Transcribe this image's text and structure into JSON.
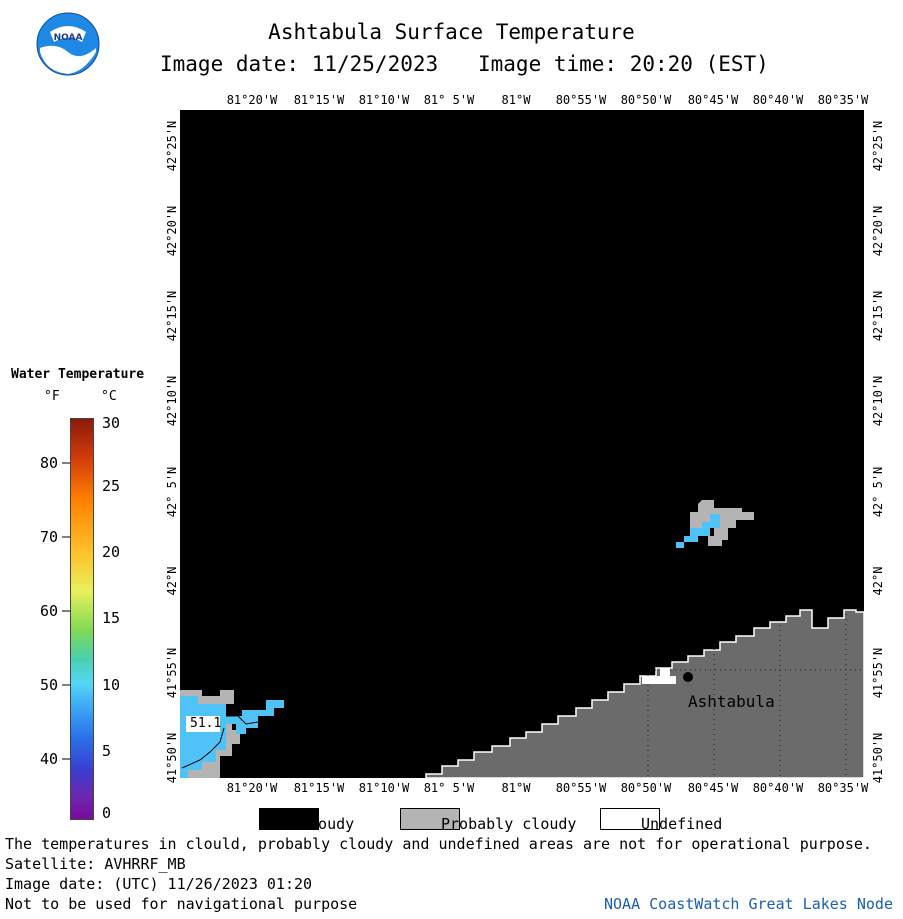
{
  "header": {
    "title": "Ashtabula Surface Temperature",
    "image_date": "Image date: 11/25/2023",
    "image_time": "Image time: 20:20 (EST)"
  },
  "logo": {
    "text": "NOAA"
  },
  "map": {
    "lon_labels": [
      "81°20'W",
      "81°15'W",
      "81°10'W",
      "81° 5'W",
      "81°W",
      "80°55'W",
      "80°50'W",
      "80°45'W",
      "80°40'W",
      "80°35'W"
    ],
    "lat_labels": [
      "42°25'N",
      "42°20'N",
      "42°15'N",
      "42°10'N",
      "42° 5'N",
      "42°N",
      "41°55'N",
      "41°50'N"
    ],
    "city_label": "Ashtabula",
    "temp_label": "51.1"
  },
  "legend": {
    "title": "Water Temperature",
    "unit_f": "°F",
    "unit_c": "°C",
    "f_ticks": [
      "80",
      "70",
      "60",
      "50",
      "40"
    ],
    "c_ticks": [
      "30",
      "25",
      "20",
      "15",
      "10",
      "5",
      "0"
    ]
  },
  "key": {
    "cloudy": "Cloudy",
    "probably_cloudy": "Probably cloudy",
    "undefined": "Undefined"
  },
  "footer": {
    "line1": "The temperatures in clould, probably cloudy and undefined areas are not for operational purpose.",
    "line2": "Satellite: AVHRRF_MB",
    "line3": "Image date: (UTC) 11/26/2023  01:20",
    "line4": "Not to be used for navigational purpose",
    "credit": "NOAA CoastWatch Great Lakes Node"
  },
  "colors": {
    "land": "#6b6b6b",
    "cloud": "#000000",
    "probably_cloudy": "#b4b4b4",
    "water_cool": "#4fc3f7",
    "credit": "#1a5fb4"
  }
}
